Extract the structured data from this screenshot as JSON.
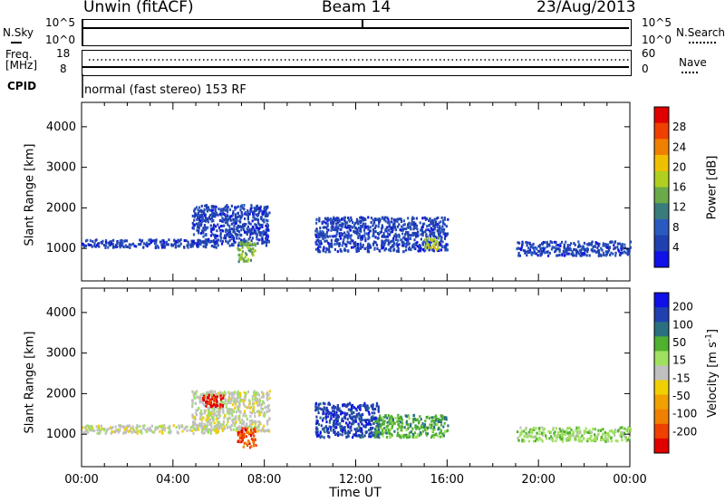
{
  "header": {
    "station": "Unwin",
    "mode": "(fitACF)",
    "beam": "Beam 14",
    "date": "23/Aug/2013"
  },
  "strips": {
    "nsky_label": "N.Sky",
    "nsky_ticks": [
      "10^5",
      "10^0"
    ],
    "nsearch_label": "N.Search",
    "nsearch_ticks": [
      "10^5",
      "10^0"
    ],
    "freq_label": "Freq.",
    "freq_unit": "[MHz]",
    "freq_ticks": [
      "18",
      "8"
    ],
    "nave_label": "Nave",
    "nave_ticks": [
      "60",
      "0"
    ],
    "cpid_label": "CPID",
    "cpid_text": "normal (fast stereo) 153 RF"
  },
  "xaxis": {
    "label": "Time UT",
    "ticks": [
      "00:00",
      "04:00",
      "08:00",
      "12:00",
      "16:00",
      "20:00",
      "00:00"
    ]
  },
  "colors": {
    "power": [
      "#1010e8",
      "#2040b0",
      "#2a5ac0",
      "#3a7c7c",
      "#6aaa4a",
      "#b0d020",
      "#f0c000",
      "#f08000",
      "#f04000",
      "#e00000"
    ],
    "velocity": [
      "#e00000",
      "#f04000",
      "#f08000",
      "#f0a000",
      "#f0d000",
      "#c0c0c0",
      "#a0e060",
      "#50b030",
      "#2a7080",
      "#2040b0",
      "#1010e8"
    ]
  },
  "chart_data": [
    {
      "type": "heatmap",
      "title": "",
      "xlabel": "",
      "ylabel": "Slant Range [km]",
      "xlim": [
        "00:00",
        "24:00"
      ],
      "ylim": [
        200,
        4600
      ],
      "yticks": [
        "1000",
        "2000",
        "3000",
        "4000"
      ],
      "colorbar": {
        "label": "Power [dB]",
        "ticks": [
          "4",
          "8",
          "12",
          "16",
          "20",
          "24",
          "28"
        ],
        "range": [
          0,
          32
        ]
      },
      "clusters": [
        {
          "t": [
            0.0,
            6.0
          ],
          "r": [
            1050,
            1250
          ],
          "level": 1
        },
        {
          "t": [
            4.8,
            8.2
          ],
          "r": [
            1100,
            2100
          ],
          "level": 1
        },
        {
          "t": [
            6.8,
            7.6
          ],
          "r": [
            700,
            1200
          ],
          "level": 4
        },
        {
          "t": [
            10.2,
            16.0
          ],
          "r": [
            950,
            1800
          ],
          "level": 1
        },
        {
          "t": [
            15.0,
            15.6
          ],
          "r": [
            1000,
            1300
          ],
          "level": 5
        },
        {
          "t": [
            19.0,
            24.0
          ],
          "r": [
            850,
            1200
          ],
          "level": 1
        }
      ]
    },
    {
      "type": "heatmap",
      "title": "",
      "xlabel": "Time UT",
      "ylabel": "Slant Range [km]",
      "xlim": [
        "00:00",
        "24:00"
      ],
      "ylim": [
        200,
        4600
      ],
      "yticks": [
        "1000",
        "2000",
        "3000",
        "4000"
      ],
      "colorbar": {
        "label": "Velocity [m s^-1]",
        "ticks": [
          "200",
          "100",
          "50",
          "15",
          "-15",
          "-50",
          "-100",
          "-200"
        ],
        "range": [
          -250,
          250
        ]
      },
      "clusters": [
        {
          "t": [
            0.0,
            6.0
          ],
          "r": [
            1050,
            1250
          ],
          "level": 5
        },
        {
          "t": [
            4.8,
            8.2
          ],
          "r": [
            1100,
            2100
          ],
          "level": 5
        },
        {
          "t": [
            5.2,
            6.2
          ],
          "r": [
            1700,
            2000
          ],
          "level": 0
        },
        {
          "t": [
            6.8,
            7.6
          ],
          "r": [
            700,
            1200
          ],
          "level": 1
        },
        {
          "t": [
            10.2,
            13.0
          ],
          "r": [
            950,
            1800
          ],
          "level": 9
        },
        {
          "t": [
            12.8,
            16.0
          ],
          "r": [
            950,
            1500
          ],
          "level": 7
        },
        {
          "t": [
            19.0,
            24.0
          ],
          "r": [
            850,
            1200
          ],
          "level": 6
        }
      ]
    }
  ]
}
